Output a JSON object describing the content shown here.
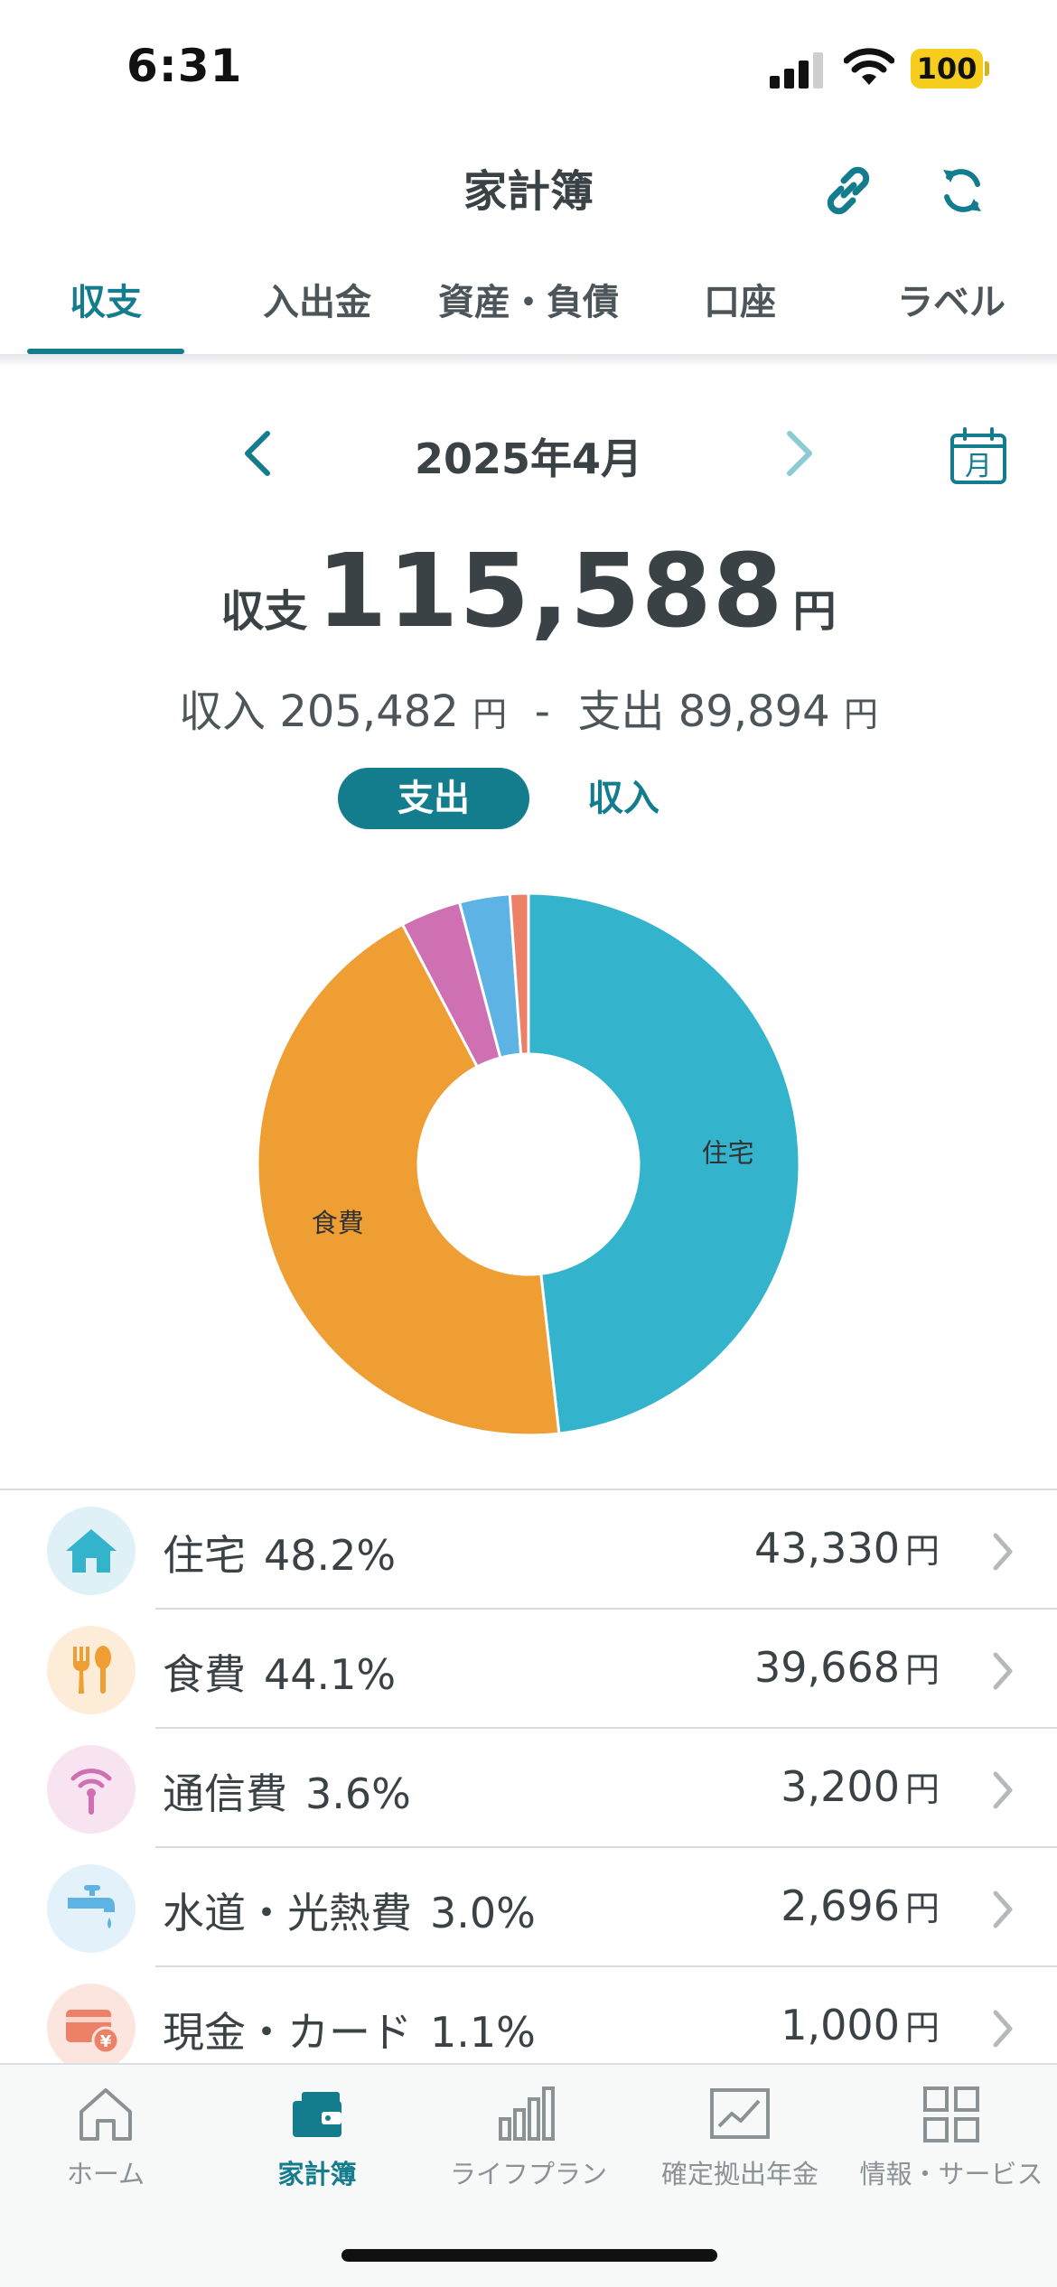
{
  "status_bar": {
    "time": "6:31",
    "battery": "100"
  },
  "header": {
    "title": "家計簿",
    "link_icon": "link-icon",
    "sync_icon": "sync-icon"
  },
  "tabs": [
    {
      "label": "収支",
      "active": true
    },
    {
      "label": "入出金",
      "active": false
    },
    {
      "label": "資産・負債",
      "active": false
    },
    {
      "label": "口座",
      "active": false
    },
    {
      "label": "ラベル",
      "active": false
    }
  ],
  "month_nav": {
    "label": "2025年4月",
    "calendar_label": "月"
  },
  "balance": {
    "label": "収支",
    "amount": "115,588",
    "unit": "円",
    "income_label": "収入",
    "income": "205,482",
    "minus": "-",
    "expense_label": "支出",
    "expense": "89,894",
    "yen": "円"
  },
  "toggle": {
    "expense": "支出",
    "income": "収入",
    "selected": "expense"
  },
  "chart_data": {
    "type": "pie",
    "donut": true,
    "series": [
      {
        "label": "住宅",
        "percent": 48.2,
        "color": "#33b3cc",
        "show_label": true
      },
      {
        "label": "食費",
        "percent": 44.1,
        "color": "#ee9e32",
        "show_label": true
      },
      {
        "label": "通信費",
        "percent": 3.6,
        "color": "#cf70b3",
        "show_label": false
      },
      {
        "label": "水道・光熱費",
        "percent": 3.0,
        "color": "#5db3e3",
        "show_label": false
      },
      {
        "label": "現金・カード",
        "percent": 1.1,
        "color": "#ec8168",
        "show_label": false
      }
    ]
  },
  "categories": [
    {
      "name": "住宅",
      "percent": "48.2%",
      "amount": "43,330",
      "yen": "円",
      "icon": "house-icon",
      "icon_bg": "#dff1f6",
      "icon_color": "#33b3cc"
    },
    {
      "name": "食費",
      "percent": "44.1%",
      "amount": "39,668",
      "yen": "円",
      "icon": "fork-spoon-icon",
      "icon_bg": "#fdecd7",
      "icon_color": "#ee9e32"
    },
    {
      "name": "通信費",
      "percent": "3.6%",
      "amount": "3,200",
      "yen": "円",
      "icon": "antenna-icon",
      "icon_bg": "#f7e4f0",
      "icon_color": "#cf70b3"
    },
    {
      "name": "水道・光熱費",
      "percent": "3.0%",
      "amount": "2,696",
      "yen": "円",
      "icon": "faucet-icon",
      "icon_bg": "#e2f1fa",
      "icon_color": "#5db3e3"
    },
    {
      "name": "現金・カード",
      "percent": "1.1%",
      "amount": "1,000",
      "yen": "円",
      "icon": "card-yen-icon",
      "icon_bg": "#fde5df",
      "icon_color": "#ec8168"
    }
  ],
  "bottom_nav": [
    {
      "label": "ホーム",
      "icon": "home-icon",
      "active": false
    },
    {
      "label": "家計簿",
      "icon": "wallet-icon",
      "active": true
    },
    {
      "label": "ライフプラン",
      "icon": "bar-chart-icon",
      "active": false
    },
    {
      "label": "確定拠出年金",
      "icon": "line-chart-icon",
      "active": false
    },
    {
      "label": "情報・サービス",
      "icon": "grid-icon",
      "active": false
    }
  ],
  "colors": {
    "accent": "#137d8e",
    "text": "#3a4246"
  }
}
